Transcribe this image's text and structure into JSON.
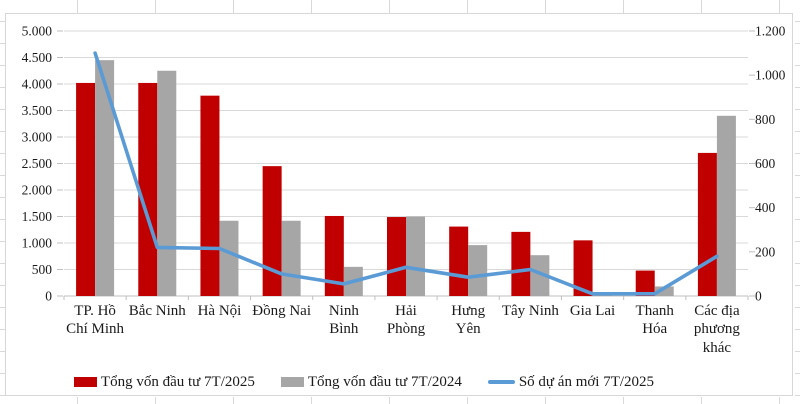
{
  "colors": {
    "bar_2025": "#C00000",
    "bar_2024": "#A6A6A6",
    "line_2025": "#5B9BD5",
    "gridline": "#D9D9D9",
    "axis_line": "#BFBFBF",
    "text": "#1a1a1a"
  },
  "chart_data": {
    "type": "bar",
    "subtype": "combo-bar-line-dual-axis",
    "title": "",
    "xlabel": "",
    "ylabel": "",
    "grid": "horizontal-major",
    "legend_position": "bottom",
    "categories": [
      "TP. Hồ Chí Minh",
      "Bắc Ninh",
      "Hà Nội",
      "Đồng Nai",
      "Ninh Bình",
      "Hải Phòng",
      "Hưng Yên",
      "Tây Ninh",
      "Gia Lai",
      "Thanh Hóa",
      "Các địa phương khác"
    ],
    "category_labels_wrapped": [
      "TP. Hồ\nChí Minh",
      "Bắc Ninh",
      "Hà Nội",
      "Đồng Nai",
      "Ninh\nBình",
      "Hải\nPhòng",
      "Hưng\nYên",
      "Tây Ninh",
      "Gia Lai",
      "Thanh\nHóa",
      "Các địa\nphương\nkhác"
    ],
    "series": [
      {
        "name": "Tổng vốn đầu tư 7T/2025",
        "type": "bar",
        "axis": "left",
        "color": "#C00000",
        "values": [
          4020,
          4020,
          3780,
          2450,
          1510,
          1490,
          1310,
          1210,
          1050,
          480,
          2700
        ]
      },
      {
        "name": "Tổng vốn đầu tư  7T/2024",
        "type": "bar",
        "axis": "left",
        "color": "#A6A6A6",
        "values": [
          4450,
          4250,
          1420,
          1420,
          550,
          1500,
          960,
          770,
          20,
          180,
          3400
        ]
      },
      {
        "name": "Số dự án mới 7T/2025",
        "type": "line",
        "axis": "right",
        "color": "#5B9BD5",
        "values": [
          1100,
          220,
          215,
          100,
          55,
          130,
          85,
          120,
          10,
          10,
          180
        ]
      }
    ],
    "left_axis": {
      "min": 0,
      "max": 5000,
      "step": 500,
      "tick_labels": [
        "0",
        "500",
        "1.000",
        "1.500",
        "2.000",
        "2.500",
        "3.000",
        "3.500",
        "4.000",
        "4.500",
        "5.000"
      ]
    },
    "right_axis": {
      "min": 0,
      "max": 1200,
      "step": 200,
      "tick_labels": [
        "0",
        "200",
        "400",
        "600",
        "800",
        "1.000",
        "1.200"
      ]
    }
  }
}
